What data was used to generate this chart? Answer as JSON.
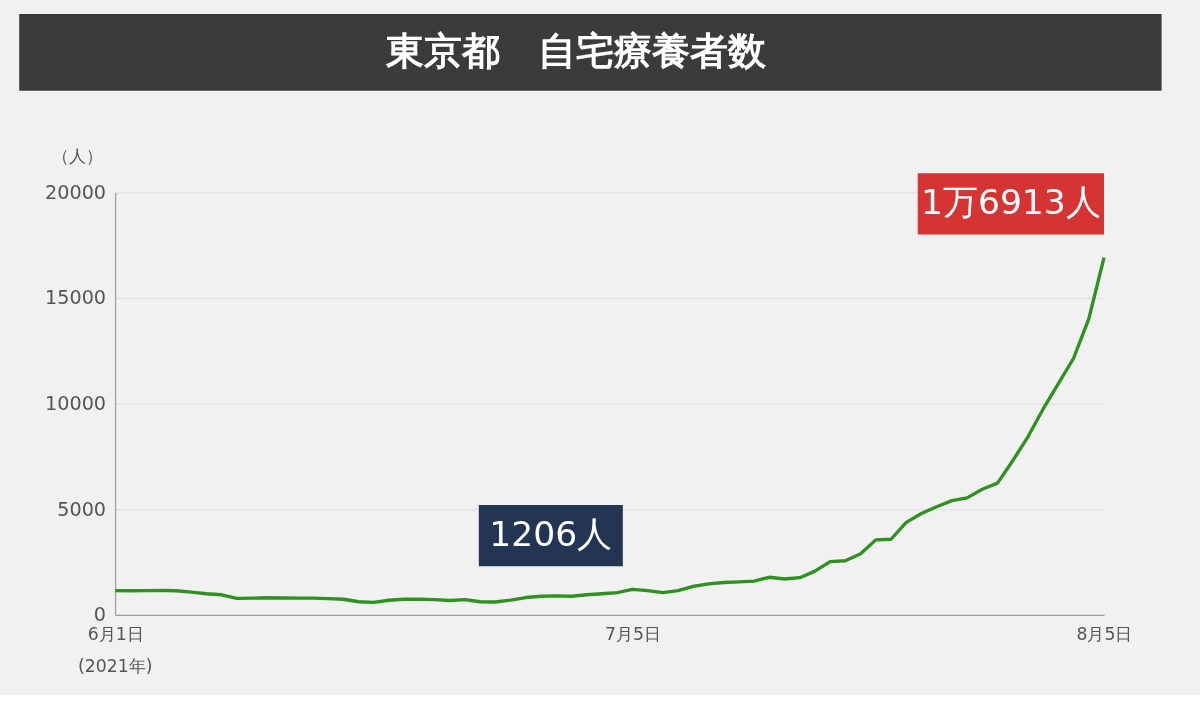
{
  "chart_data": {
    "type": "line",
    "title": "東京都　自宅療養者数",
    "ylabel": "（人）",
    "x": [
      "2021-06-01",
      "2021-06-02",
      "2021-06-03",
      "2021-06-04",
      "2021-06-05",
      "2021-06-06",
      "2021-06-07",
      "2021-06-08",
      "2021-06-09",
      "2021-06-10",
      "2021-06-11",
      "2021-06-12",
      "2021-06-13",
      "2021-06-14",
      "2021-06-15",
      "2021-06-16",
      "2021-06-17",
      "2021-06-18",
      "2021-06-19",
      "2021-06-20",
      "2021-06-21",
      "2021-06-22",
      "2021-06-23",
      "2021-06-24",
      "2021-06-25",
      "2021-06-26",
      "2021-06-27",
      "2021-06-28",
      "2021-06-29",
      "2021-06-30",
      "2021-07-01",
      "2021-07-02",
      "2021-07-03",
      "2021-07-04",
      "2021-07-05",
      "2021-07-06",
      "2021-07-07",
      "2021-07-08",
      "2021-07-09",
      "2021-07-10",
      "2021-07-11",
      "2021-07-12",
      "2021-07-13",
      "2021-07-14",
      "2021-07-15",
      "2021-07-16",
      "2021-07-17",
      "2021-07-18",
      "2021-07-19",
      "2021-07-20",
      "2021-07-21",
      "2021-07-22",
      "2021-07-23",
      "2021-07-24",
      "2021-07-25",
      "2021-07-26",
      "2021-07-27",
      "2021-07-28",
      "2021-07-29",
      "2021-07-30",
      "2021-07-31",
      "2021-08-01",
      "2021-08-02",
      "2021-08-03",
      "2021-08-04",
      "2021-08-05"
    ],
    "series": [
      {
        "color": "#2e9120",
        "values": [
          1150,
          1140,
          1150,
          1160,
          1140,
          1080,
          1000,
          950,
          780,
          790,
          810,
          800,
          790,
          790,
          770,
          740,
          620,
          590,
          690,
          740,
          740,
          720,
          680,
          720,
          620,
          610,
          700,
          820,
          880,
          900,
          880,
          950,
          1000,
          1050,
          1206,
          1150,
          1050,
          1150,
          1350,
          1470,
          1530,
          1560,
          1600,
          1780,
          1700,
          1760,
          2070,
          2520,
          2560,
          2890,
          3550,
          3580,
          4380,
          4800,
          5120,
          5410,
          5540,
          5950,
          6240,
          7300,
          8430,
          9750,
          10950,
          12150,
          14010,
          16913
        ]
      }
    ],
    "xlim": [
      "2021-06-01",
      "2021-08-05"
    ],
    "xticks": [
      {
        "value": "2021-06-01",
        "label": "6月1日"
      },
      {
        "value": "2021-07-05",
        "label": "7月5日"
      },
      {
        "value": "2021-08-05",
        "label": "8月5日"
      }
    ],
    "ylim": [
      0,
      20000
    ],
    "yticks": [
      0,
      5000,
      10000,
      15000,
      20000
    ],
    "grid": "y",
    "marker": "none",
    "line_style": "solid",
    "annotations": [
      {
        "text": "1206人",
        "x": "2021-07-05",
        "y": 1206
      },
      {
        "text": "1万6913人",
        "x": "2021-08-05",
        "y": 16913
      },
      "(2021年)"
    ]
  }
}
